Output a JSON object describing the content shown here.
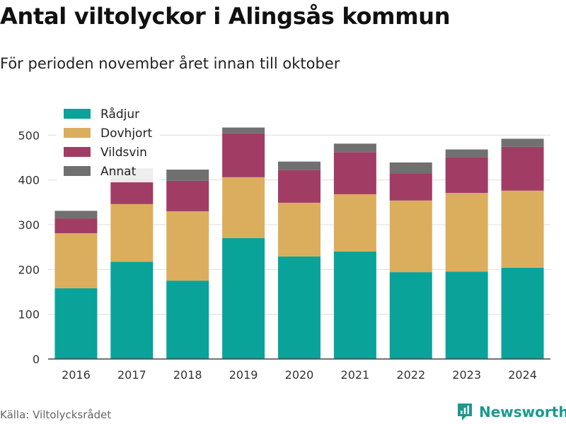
{
  "title": "Antal viltolyckor i Alingsås kommun",
  "subtitle": "För perioden november året innan till oktober",
  "source": "Källa: Viltolycksrådet",
  "brand": "Newsworthy",
  "colors": {
    "Rådjur": "#0aa39a",
    "Dovhjort": "#dbae5e",
    "Vildsvin": "#a13d65",
    "Annat": "#707070",
    "grid": "#dddddd",
    "axis": "#444444",
    "brand": "#1a9a8e"
  },
  "chart_data": {
    "type": "bar",
    "stacked": true,
    "categories": [
      "2016",
      "2017",
      "2018",
      "2019",
      "2020",
      "2021",
      "2022",
      "2023",
      "2024"
    ],
    "series": [
      {
        "name": "Rådjur",
        "values": [
          158,
          217,
          175,
          270,
          229,
          240,
          194,
          195,
          204
        ]
      },
      {
        "name": "Dovhjort",
        "values": [
          123,
          129,
          155,
          136,
          120,
          128,
          160,
          176,
          172
        ]
      },
      {
        "name": "Vildsvin",
        "values": [
          33,
          57,
          68,
          98,
          73,
          94,
          61,
          80,
          98
        ]
      },
      {
        "name": "Annat",
        "values": [
          17,
          23,
          25,
          13,
          19,
          19,
          24,
          17,
          18
        ]
      }
    ],
    "xlabel": "",
    "ylabel": "",
    "ylim": [
      0,
      530
    ],
    "yticks": [
      0,
      100,
      200,
      300,
      400,
      500
    ],
    "grid": true,
    "legend_position": "top-left"
  }
}
